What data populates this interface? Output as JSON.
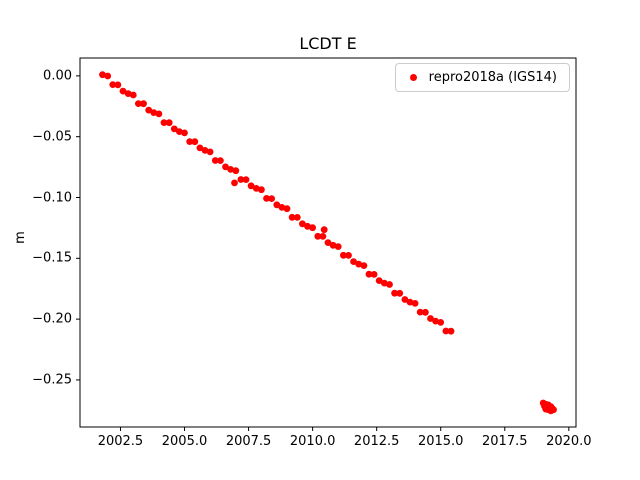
{
  "figure": {
    "background_color": "#ffffff",
    "series_color": "#ff0000"
  },
  "chart_data": {
    "type": "scatter",
    "title": "LCDT E",
    "xlabel": "",
    "ylabel": "m",
    "xlim": [
      2000.92,
      2020.28
    ],
    "ylim": [
      -0.2887,
      0.0147
    ],
    "xticks": [
      2002.5,
      2005.0,
      2007.5,
      2010.0,
      2012.5,
      2015.0,
      2017.5,
      2020.0
    ],
    "xtick_labels": [
      "2002.5",
      "2005.0",
      "2007.5",
      "2010.0",
      "2012.5",
      "2015.0",
      "2017.5",
      "2020.0"
    ],
    "yticks": [
      0.0,
      -0.05,
      -0.1,
      -0.15,
      -0.2,
      -0.25
    ],
    "ytick_labels": [
      "0.00",
      "−0.05",
      "−0.10",
      "−0.15",
      "−0.20",
      "−0.25"
    ],
    "grid": false,
    "legend_position": "upper right",
    "series": [
      {
        "name": "repro2018a (IGS14)",
        "color": "#ff0000",
        "marker": "dot",
        "points": [
          [
            2001.8,
            0.001
          ],
          [
            2002.0,
            -0.0001
          ],
          [
            2002.2,
            -0.0072
          ],
          [
            2002.4,
            -0.0074
          ],
          [
            2002.6,
            -0.0125
          ],
          [
            2002.8,
            -0.0146
          ],
          [
            2003.0,
            -0.0157
          ],
          [
            2003.2,
            -0.0228
          ],
          [
            2003.4,
            -0.0229
          ],
          [
            2003.6,
            -0.0281
          ],
          [
            2003.8,
            -0.0302
          ],
          [
            2004.0,
            -0.0313
          ],
          [
            2004.2,
            -0.0384
          ],
          [
            2004.4,
            -0.0385
          ],
          [
            2004.6,
            -0.0436
          ],
          [
            2004.8,
            -0.0458
          ],
          [
            2005.0,
            -0.0469
          ],
          [
            2005.2,
            -0.054
          ],
          [
            2005.4,
            -0.0541
          ],
          [
            2005.6,
            -0.0592
          ],
          [
            2005.8,
            -0.0613
          ],
          [
            2006.0,
            -0.0625
          ],
          [
            2006.2,
            -0.0696
          ],
          [
            2006.4,
            -0.0697
          ],
          [
            2006.6,
            -0.0748
          ],
          [
            2006.8,
            -0.0769
          ],
          [
            2006.95,
            -0.088
          ],
          [
            2007.0,
            -0.078
          ],
          [
            2007.2,
            -0.0852
          ],
          [
            2007.4,
            -0.0853
          ],
          [
            2007.6,
            -0.0904
          ],
          [
            2007.8,
            -0.0925
          ],
          [
            2008.0,
            -0.0936
          ],
          [
            2008.2,
            -0.1007
          ],
          [
            2008.4,
            -0.1009
          ],
          [
            2008.6,
            -0.106
          ],
          [
            2008.8,
            -0.1081
          ],
          [
            2009.0,
            -0.1092
          ],
          [
            2009.2,
            -0.1163
          ],
          [
            2009.4,
            -0.1164
          ],
          [
            2009.6,
            -0.1216
          ],
          [
            2009.8,
            -0.1237
          ],
          [
            2010.0,
            -0.1248
          ],
          [
            2010.2,
            -0.1319
          ],
          [
            2010.4,
            -0.132
          ],
          [
            2010.45,
            -0.1265
          ],
          [
            2010.6,
            -0.1371
          ],
          [
            2010.8,
            -0.1393
          ],
          [
            2011.0,
            -0.1404
          ],
          [
            2011.2,
            -0.1475
          ],
          [
            2011.4,
            -0.1476
          ],
          [
            2011.6,
            -0.1527
          ],
          [
            2011.8,
            -0.1548
          ],
          [
            2012.0,
            -0.156
          ],
          [
            2012.2,
            -0.1631
          ],
          [
            2012.4,
            -0.1632
          ],
          [
            2012.6,
            -0.1683
          ],
          [
            2012.8,
            -0.1704
          ],
          [
            2013.0,
            -0.1715
          ],
          [
            2013.2,
            -0.1787
          ],
          [
            2013.4,
            -0.1788
          ],
          [
            2013.6,
            -0.1839
          ],
          [
            2013.8,
            -0.186
          ],
          [
            2014.0,
            -0.1871
          ],
          [
            2014.2,
            -0.1942
          ],
          [
            2014.4,
            -0.1944
          ],
          [
            2014.6,
            -0.1995
          ],
          [
            2014.8,
            -0.2016
          ],
          [
            2015.0,
            -0.2027
          ],
          [
            2015.2,
            -0.2098
          ],
          [
            2015.4,
            -0.2099
          ],
          [
            2019.0,
            -0.269
          ],
          [
            2019.05,
            -0.2715
          ],
          [
            2019.1,
            -0.27
          ],
          [
            2019.1,
            -0.274
          ],
          [
            2019.15,
            -0.2725
          ],
          [
            2019.2,
            -0.2705
          ],
          [
            2019.2,
            -0.2745
          ],
          [
            2019.25,
            -0.273
          ],
          [
            2019.3,
            -0.272
          ],
          [
            2019.3,
            -0.2755
          ],
          [
            2019.35,
            -0.2735
          ],
          [
            2019.4,
            -0.2745
          ]
        ]
      }
    ]
  }
}
